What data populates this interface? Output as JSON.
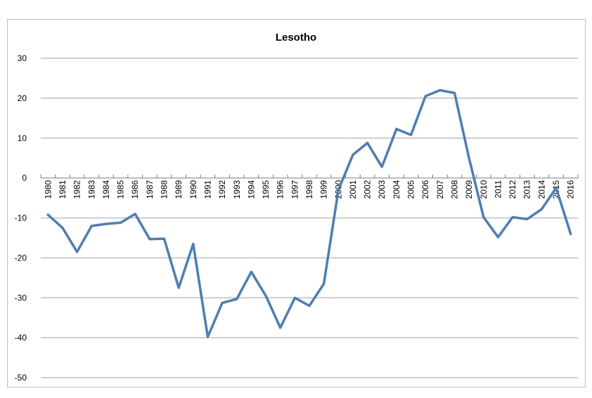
{
  "chart_data": {
    "type": "line",
    "title": "Lesotho",
    "xlabel": "",
    "ylabel": "",
    "ylim": [
      -50,
      30
    ],
    "yticks": [
      30,
      20,
      10,
      0,
      -10,
      -20,
      -30,
      -40,
      -50
    ],
    "grid": true,
    "legend": "none",
    "line_color": "#4a7ebb",
    "categories": [
      "1980",
      "1981",
      "1982",
      "1983",
      "1984",
      "1985",
      "1986",
      "1987",
      "1988",
      "1989",
      "1990",
      "1991",
      "1992",
      "1993",
      "1994",
      "1995",
      "1996",
      "1997",
      "1998",
      "1999",
      "2000",
      "2001",
      "2002",
      "2003",
      "2004",
      "2005",
      "2006",
      "2007",
      "2008",
      "2009",
      "2010",
      "2011",
      "2012",
      "2013",
      "2014",
      "2015",
      "2016"
    ],
    "values": [
      -9.2,
      -12.5,
      -18.5,
      -12.0,
      -11.5,
      -11.2,
      -9.0,
      -15.3,
      -15.2,
      -27.5,
      -16.5,
      -39.8,
      -31.3,
      -30.3,
      -23.5,
      -29.5,
      -37.5,
      -30.0,
      -32.0,
      -26.5,
      -3.0,
      5.8,
      8.8,
      2.8,
      12.3,
      10.8,
      20.5,
      22.0,
      21.3,
      5.0,
      -9.8,
      -14.8,
      -9.8,
      -10.3,
      -7.8,
      -2.5,
      -14.0
    ]
  }
}
